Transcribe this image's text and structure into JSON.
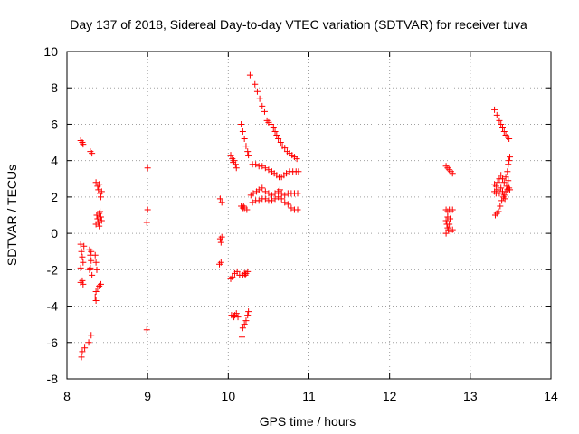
{
  "chart_data": {
    "type": "scatter",
    "title": "Day 137 of 2018, Sidereal Day-to-day VTEC variation (SDTVAR) for receiver tuva",
    "xlabel": "GPS time / hours",
    "ylabel": "SDTVAR / TECUs",
    "xlim": [
      8,
      14
    ],
    "ylim": [
      -8,
      10
    ],
    "x_ticks": [
      8,
      9,
      10,
      11,
      12,
      13,
      14
    ],
    "y_ticks": [
      -8,
      -6,
      -4,
      -2,
      0,
      2,
      4,
      6,
      8,
      10
    ],
    "grid": true,
    "marker": "+",
    "color": "#ff0000",
    "series": [
      {
        "name": "SDTVAR",
        "points": [
          [
            8.17,
            5.1
          ],
          [
            8.19,
            5.0
          ],
          [
            8.2,
            4.9
          ],
          [
            8.29,
            4.5
          ],
          [
            8.31,
            4.4
          ],
          [
            8.17,
            -0.6
          ],
          [
            8.18,
            -1.0
          ],
          [
            8.19,
            -1.3
          ],
          [
            8.2,
            -1.6
          ],
          [
            8.17,
            -1.9
          ],
          [
            8.21,
            -0.7
          ],
          [
            8.19,
            -2.6
          ],
          [
            8.2,
            -2.8
          ],
          [
            8.17,
            -2.7
          ],
          [
            8.28,
            -0.9
          ],
          [
            8.29,
            -1.2
          ],
          [
            8.3,
            -1.5
          ],
          [
            8.29,
            -1.9
          ],
          [
            8.31,
            -2.3
          ],
          [
            8.28,
            -2.0
          ],
          [
            8.3,
            -1.0
          ],
          [
            8.18,
            -6.8
          ],
          [
            8.19,
            -6.5
          ],
          [
            8.22,
            -6.3
          ],
          [
            8.27,
            -6.0
          ],
          [
            8.3,
            -5.6
          ],
          [
            8.36,
            2.8
          ],
          [
            8.38,
            2.6
          ],
          [
            8.39,
            2.4
          ],
          [
            8.41,
            2.2
          ],
          [
            8.42,
            2.0
          ],
          [
            8.4,
            2.7
          ],
          [
            8.43,
            2.3
          ],
          [
            8.37,
            1.0
          ],
          [
            8.38,
            0.8
          ],
          [
            8.39,
            0.6
          ],
          [
            8.4,
            0.4
          ],
          [
            8.41,
            1.2
          ],
          [
            8.42,
            0.9
          ],
          [
            8.36,
            0.5
          ],
          [
            8.43,
            0.7
          ],
          [
            8.4,
            1.1
          ],
          [
            8.35,
            -1.2
          ],
          [
            8.36,
            -1.6
          ],
          [
            8.37,
            -2.0
          ],
          [
            8.36,
            -3.2
          ],
          [
            8.38,
            -3.0
          ],
          [
            8.4,
            -2.9
          ],
          [
            8.42,
            -2.8
          ],
          [
            8.35,
            -3.5
          ],
          [
            8.36,
            -3.7
          ],
          [
            9.0,
            3.6
          ],
          [
            9.0,
            1.3
          ],
          [
            8.99,
            0.6
          ],
          [
            8.99,
            -5.3
          ],
          [
            9.9,
            1.9
          ],
          [
            9.92,
            1.7
          ],
          [
            9.9,
            -0.3
          ],
          [
            9.91,
            -0.5
          ],
          [
            9.92,
            -0.2
          ],
          [
            9.89,
            -1.7
          ],
          [
            9.91,
            -1.6
          ],
          [
            10.03,
            4.3
          ],
          [
            10.05,
            4.1
          ],
          [
            10.07,
            4.0
          ],
          [
            10.09,
            3.8
          ],
          [
            10.1,
            3.6
          ],
          [
            10.06,
            3.9
          ],
          [
            10.03,
            -2.5
          ],
          [
            10.05,
            -2.4
          ],
          [
            10.08,
            -2.2
          ],
          [
            10.11,
            -2.1
          ],
          [
            10.14,
            -2.3
          ],
          [
            10.04,
            -4.5
          ],
          [
            10.07,
            -4.6
          ],
          [
            10.1,
            -4.4
          ],
          [
            10.12,
            -4.6
          ],
          [
            10.08,
            -4.5
          ],
          [
            10.16,
            6.0
          ],
          [
            10.18,
            5.6
          ],
          [
            10.2,
            5.2
          ],
          [
            10.22,
            4.8
          ],
          [
            10.24,
            4.5
          ],
          [
            10.25,
            4.3
          ],
          [
            10.16,
            1.5
          ],
          [
            10.18,
            1.4
          ],
          [
            10.2,
            1.4
          ],
          [
            10.23,
            1.3
          ],
          [
            10.19,
            1.5
          ],
          [
            10.18,
            -2.3
          ],
          [
            10.2,
            -2.2
          ],
          [
            10.22,
            -2.2
          ],
          [
            10.24,
            -2.1
          ],
          [
            10.21,
            -2.3
          ],
          [
            10.17,
            -5.7
          ],
          [
            10.18,
            -5.2
          ],
          [
            10.2,
            -5.0
          ],
          [
            10.22,
            -4.8
          ],
          [
            10.24,
            -4.5
          ],
          [
            10.25,
            -4.3
          ],
          [
            10.27,
            8.7
          ],
          [
            10.33,
            8.2
          ],
          [
            10.36,
            7.8
          ],
          [
            10.39,
            7.4
          ],
          [
            10.42,
            7.0
          ],
          [
            10.45,
            6.7
          ],
          [
            10.48,
            6.2
          ],
          [
            10.5,
            6.1
          ],
          [
            10.53,
            6.0
          ],
          [
            10.56,
            5.8
          ],
          [
            10.58,
            5.6
          ],
          [
            10.6,
            5.4
          ],
          [
            10.62,
            5.2
          ],
          [
            10.65,
            5.0
          ],
          [
            10.67,
            4.8
          ],
          [
            10.7,
            4.7
          ],
          [
            10.73,
            4.5
          ],
          [
            10.76,
            4.4
          ],
          [
            10.79,
            4.3
          ],
          [
            10.82,
            4.2
          ],
          [
            10.85,
            4.1
          ],
          [
            10.3,
            3.8
          ],
          [
            10.34,
            3.8
          ],
          [
            10.38,
            3.7
          ],
          [
            10.42,
            3.7
          ],
          [
            10.46,
            3.6
          ],
          [
            10.5,
            3.5
          ],
          [
            10.54,
            3.4
          ],
          [
            10.57,
            3.3
          ],
          [
            10.6,
            3.2
          ],
          [
            10.63,
            3.1
          ],
          [
            10.66,
            3.1
          ],
          [
            10.69,
            3.2
          ],
          [
            10.72,
            3.3
          ],
          [
            10.76,
            3.4
          ],
          [
            10.8,
            3.4
          ],
          [
            10.84,
            3.4
          ],
          [
            10.87,
            3.4
          ],
          [
            10.28,
            2.1
          ],
          [
            10.31,
            2.2
          ],
          [
            10.35,
            2.3
          ],
          [
            10.38,
            2.4
          ],
          [
            10.42,
            2.5
          ],
          [
            10.46,
            2.3
          ],
          [
            10.5,
            2.2
          ],
          [
            10.54,
            2.1
          ],
          [
            10.58,
            2.2
          ],
          [
            10.62,
            2.3
          ],
          [
            10.66,
            2.2
          ],
          [
            10.7,
            2.1
          ],
          [
            10.74,
            2.2
          ],
          [
            10.78,
            2.2
          ],
          [
            10.82,
            2.2
          ],
          [
            10.86,
            2.2
          ],
          [
            10.3,
            1.7
          ],
          [
            10.34,
            1.8
          ],
          [
            10.38,
            1.8
          ],
          [
            10.42,
            1.9
          ],
          [
            10.46,
            1.9
          ],
          [
            10.5,
            1.8
          ],
          [
            10.54,
            1.8
          ],
          [
            10.58,
            1.9
          ],
          [
            10.62,
            2.0
          ],
          [
            10.64,
            2.4
          ],
          [
            10.66,
            1.9
          ],
          [
            10.7,
            1.7
          ],
          [
            10.74,
            1.6
          ],
          [
            10.78,
            1.4
          ],
          [
            10.82,
            1.3
          ],
          [
            10.86,
            1.3
          ],
          [
            12.7,
            3.7
          ],
          [
            12.72,
            3.6
          ],
          [
            12.74,
            3.5
          ],
          [
            12.76,
            3.4
          ],
          [
            12.78,
            3.3
          ],
          [
            12.7,
            1.3
          ],
          [
            12.72,
            1.2
          ],
          [
            12.74,
            1.3
          ],
          [
            12.76,
            1.2
          ],
          [
            12.78,
            1.3
          ],
          [
            12.7,
            0.7
          ],
          [
            12.71,
            0.5
          ],
          [
            12.72,
            0.3
          ],
          [
            12.73,
            0.2
          ],
          [
            12.7,
            0.0
          ],
          [
            12.74,
            0.5
          ],
          [
            12.75,
            0.8
          ],
          [
            12.76,
            0.1
          ],
          [
            12.78,
            0.2
          ],
          [
            12.72,
            0.9
          ],
          [
            13.3,
            6.8
          ],
          [
            13.33,
            6.5
          ],
          [
            13.36,
            6.2
          ],
          [
            13.38,
            6.0
          ],
          [
            13.4,
            5.8
          ],
          [
            13.42,
            5.6
          ],
          [
            13.44,
            5.4
          ],
          [
            13.46,
            5.3
          ],
          [
            13.48,
            5.2
          ],
          [
            13.3,
            2.7
          ],
          [
            13.32,
            2.6
          ],
          [
            13.34,
            2.8
          ],
          [
            13.36,
            3.0
          ],
          [
            13.38,
            3.2
          ],
          [
            13.4,
            3.0
          ],
          [
            13.42,
            2.8
          ],
          [
            13.44,
            3.1
          ],
          [
            13.46,
            3.4
          ],
          [
            13.47,
            3.8
          ],
          [
            13.48,
            4.0
          ],
          [
            13.49,
            4.2
          ],
          [
            13.3,
            2.3
          ],
          [
            13.32,
            2.2
          ],
          [
            13.34,
            2.4
          ],
          [
            13.36,
            2.2
          ],
          [
            13.38,
            2.5
          ],
          [
            13.4,
            2.3
          ],
          [
            13.42,
            2.1
          ],
          [
            13.44,
            2.3
          ],
          [
            13.46,
            2.4
          ],
          [
            13.48,
            2.5
          ],
          [
            13.49,
            2.4
          ],
          [
            13.31,
            1.0
          ],
          [
            13.33,
            1.1
          ],
          [
            13.35,
            1.2
          ],
          [
            13.37,
            1.5
          ],
          [
            13.39,
            1.8
          ],
          [
            13.41,
            2.0
          ],
          [
            13.43,
            1.9
          ],
          [
            13.45,
            2.6
          ],
          [
            13.47,
            2.9
          ]
        ]
      }
    ]
  }
}
